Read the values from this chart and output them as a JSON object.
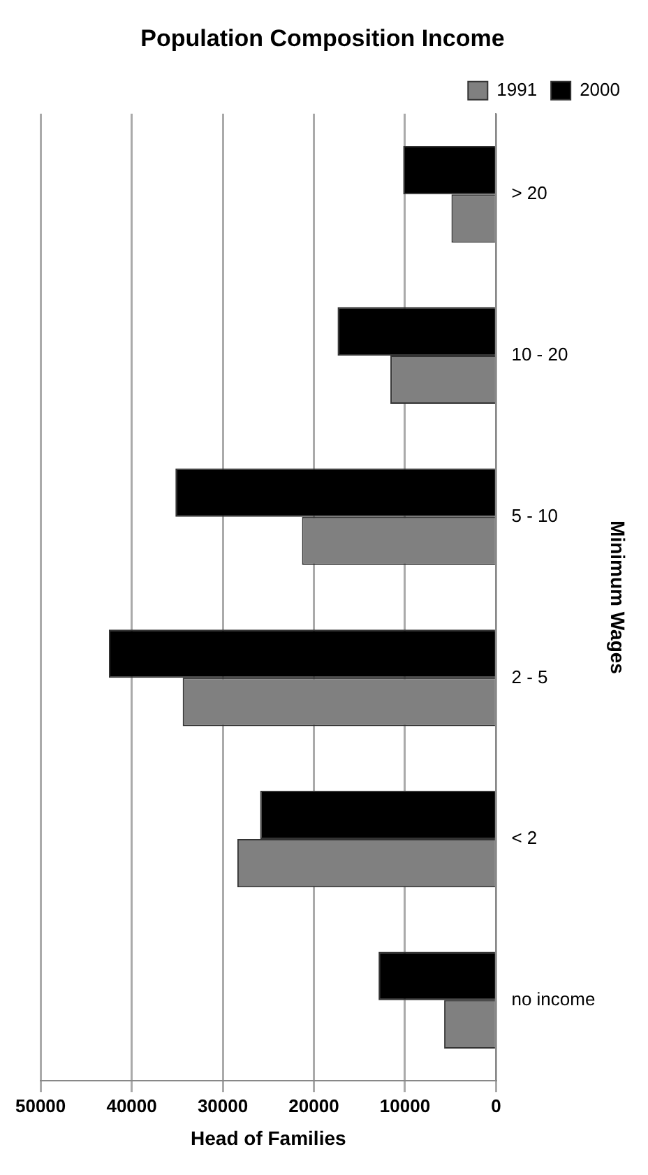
{
  "chart_data": {
    "type": "bar",
    "orientation": "horizontal",
    "title": "Population Composition Income",
    "xlabel": "Head of Families",
    "ylabel": "Minimum Wages",
    "categories": [
      "> 20",
      "10 - 20",
      "5 - 10",
      "2 - 5",
      "< 2",
      "no income"
    ],
    "series": [
      {
        "name": "1991",
        "color": "#808080",
        "values": [
          4900,
          11600,
          21300,
          34400,
          28400,
          5700
        ]
      },
      {
        "name": "2000",
        "color": "#000000",
        "values": [
          10200,
          17400,
          35200,
          42500,
          25900,
          12900
        ]
      }
    ],
    "xlim": [
      50000,
      0
    ],
    "xticks": [
      50000,
      40000,
      30000,
      20000,
      10000,
      0
    ],
    "grid": "x",
    "legend": "top right"
  }
}
